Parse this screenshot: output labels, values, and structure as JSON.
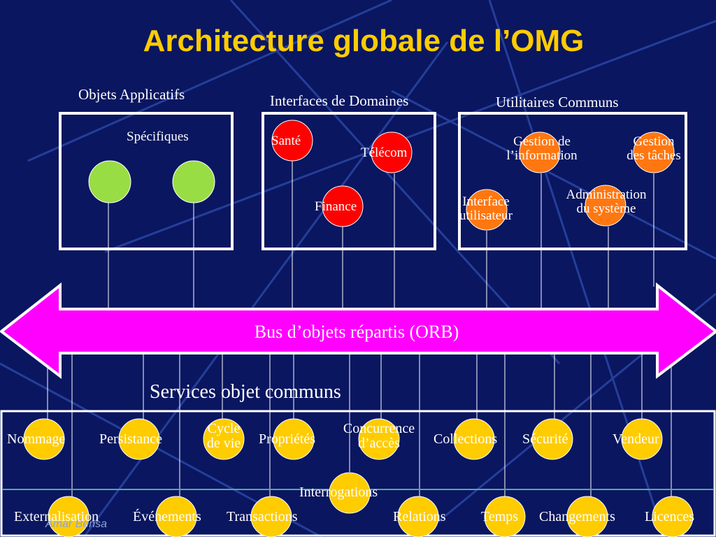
{
  "title": "Architecture globale de l’OMG",
  "groups": {
    "objets_applicatifs": "Objets Applicatifs",
    "specifiques": "Spécifiques",
    "interfaces_domaines": "Interfaces de Domaines",
    "utilitaires_communs": "Utilitaires Communs"
  },
  "domains": {
    "sante": "Santé",
    "telecom": "Télécom",
    "finance": "Finance"
  },
  "utilities": {
    "gestion_info": [
      "Gestion de",
      "l’information"
    ],
    "gestion_taches": [
      "Gestion",
      "des tâches"
    ],
    "interface_utilisateur": [
      "Interface",
      "utilisateur"
    ],
    "administration": [
      "Administration",
      "du système"
    ]
  },
  "orb": "Bus d’objets répartis (ORB)",
  "services_title": "Services objet communs",
  "services_row1": [
    "Nommage",
    "Persistance",
    "Cycle de vie",
    "Propriétés",
    "Concurrence d’accès",
    "Collections",
    "Sécurité",
    "Vendeur"
  ],
  "services_cycle": [
    "Cycle",
    "de vie"
  ],
  "services_concurrence": [
    "Concurrence",
    "d’accès"
  ],
  "service_mid": "Interrogations",
  "services_row2": [
    "Externalisation",
    "Événements",
    "Transactions",
    "Relations",
    "Temps",
    "Changements",
    "Licences"
  ],
  "footer": "Amar Bensa",
  "colors": {
    "background": "#0a1660",
    "title": "#ffcc00",
    "orb": "#ff00ff",
    "app_object": "#99dd44",
    "domain": "#ff0000",
    "utility": "#ff7711",
    "service": "#ffcc00"
  }
}
